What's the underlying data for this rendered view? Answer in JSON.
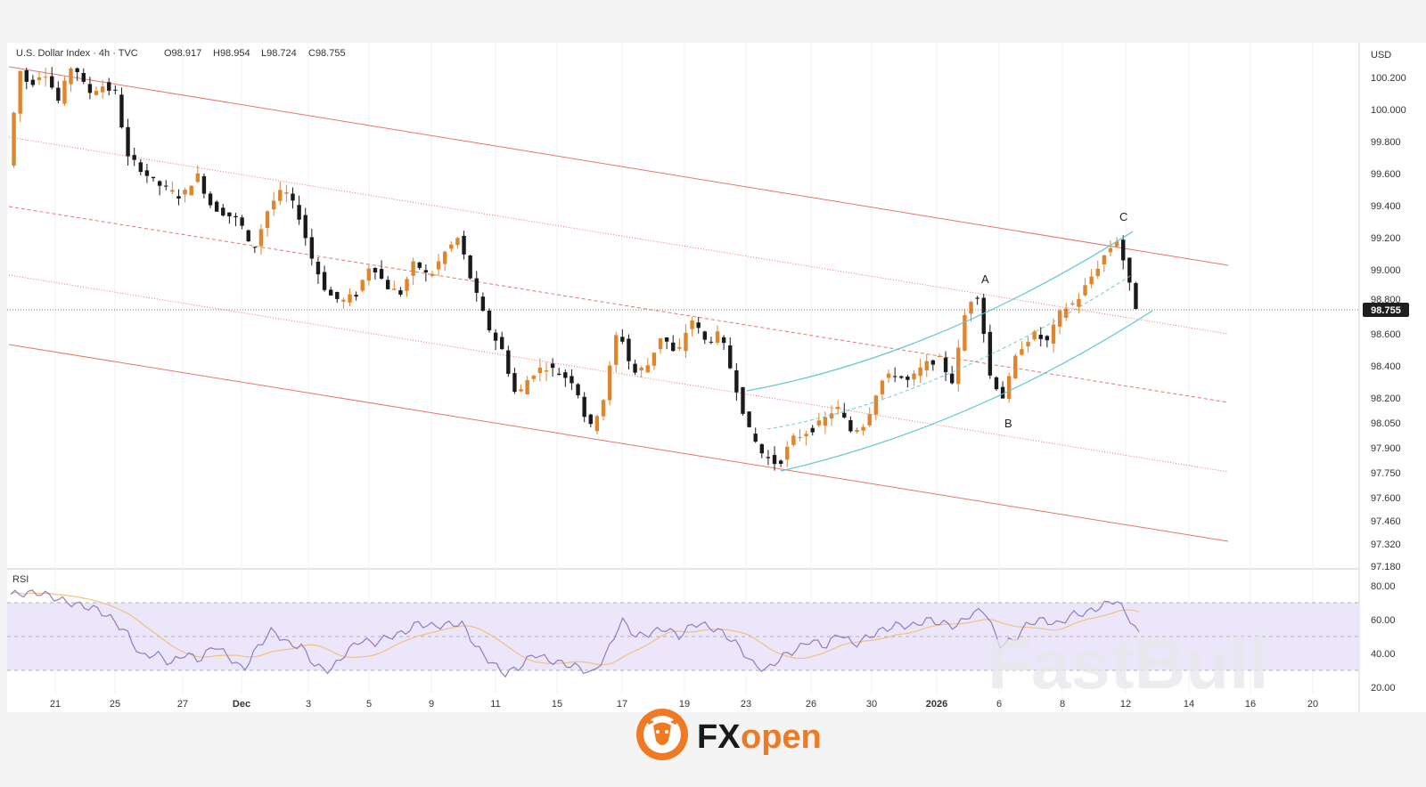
{
  "header": {
    "symbol": "U.S. Dollar Index · 4h · TVC",
    "open": "O98.917",
    "high": "H98.954",
    "low": "L98.724",
    "close": "C98.755"
  },
  "price_axis": {
    "currency": "USD",
    "ticks": [
      "100.200",
      "100.000",
      "99.800",
      "99.600",
      "99.400",
      "99.200",
      "99.000",
      "98.800",
      "98.600",
      "98.400",
      "98.200",
      "98.050",
      "97.900",
      "97.750",
      "97.600",
      "97.460",
      "97.320",
      "97.180"
    ],
    "current_price": "98.755"
  },
  "time_axis": {
    "ticks": [
      "21",
      "25",
      "27",
      "Dec",
      "3",
      "5",
      "9",
      "11",
      "15",
      "17",
      "19",
      "23",
      "26",
      "30",
      "2026",
      "6",
      "8",
      "12",
      "14",
      "16",
      "20"
    ],
    "bold_ticks": [
      "Dec",
      "2026"
    ]
  },
  "rsi": {
    "label": "RSI",
    "ticks": [
      "80.00",
      "60.00",
      "40.00",
      "20.00"
    ],
    "band": [
      30,
      70
    ],
    "mid": 50
  },
  "waves": {
    "a": "A",
    "b": "B",
    "c": "C"
  },
  "colors": {
    "up": "#e0852c",
    "down": "#1a1a1a",
    "channel": "#e4766b",
    "curve": "#5cc7d1",
    "rsi_line": "#8e7cc3",
    "rsi_ma": "#f1c27d",
    "rsi_band": "#ece6fb"
  },
  "logo": {
    "brand_fx": "FX",
    "brand_open": "open"
  },
  "watermark": "FastBull",
  "chart_data": {
    "type": "candlestick",
    "title": "U.S. Dollar Index · 4h · TVC",
    "ylim": [
      97.1,
      100.45
    ],
    "ohlc_last": {
      "open": 98.917,
      "high": 98.954,
      "low": 98.724,
      "close": 98.755
    },
    "price_path": [
      [
        0,
        99.65
      ],
      [
        0.8,
        100.25
      ],
      [
        1.5,
        100.15
      ],
      [
        2.5,
        100.25
      ],
      [
        3.5,
        100.05
      ],
      [
        4.5,
        100.3
      ],
      [
        5.5,
        100.1
      ],
      [
        6.5,
        100.15
      ],
      [
        7.5,
        100.1
      ],
      [
        8.2,
        99.7
      ],
      [
        9,
        99.65
      ],
      [
        10,
        99.55
      ],
      [
        11,
        99.5
      ],
      [
        12,
        99.45
      ],
      [
        13,
        99.6
      ],
      [
        14,
        99.4
      ],
      [
        15,
        99.35
      ],
      [
        16,
        99.3
      ],
      [
        16.8,
        99.1
      ],
      [
        18,
        99.4
      ],
      [
        19,
        99.5
      ],
      [
        20,
        99.35
      ],
      [
        21,
        99.05
      ],
      [
        22,
        98.85
      ],
      [
        23,
        98.8
      ],
      [
        24,
        98.85
      ],
      [
        25,
        99.05
      ],
      [
        26,
        98.9
      ],
      [
        27,
        98.85
      ],
      [
        28,
        99.05
      ],
      [
        29,
        98.95
      ],
      [
        30,
        99.1
      ],
      [
        31,
        99.2
      ],
      [
        32,
        98.9
      ],
      [
        33,
        98.65
      ],
      [
        34,
        98.5
      ],
      [
        35,
        98.2
      ],
      [
        36,
        98.35
      ],
      [
        37,
        98.4
      ],
      [
        38,
        98.35
      ],
      [
        39,
        98.3
      ],
      [
        40,
        98.0
      ],
      [
        41,
        98.2
      ],
      [
        42,
        98.65
      ],
      [
        43,
        98.35
      ],
      [
        44,
        98.4
      ],
      [
        45,
        98.6
      ],
      [
        46,
        98.45
      ],
      [
        47,
        98.7
      ],
      [
        48,
        98.55
      ],
      [
        49,
        98.6
      ],
      [
        50,
        98.3
      ],
      [
        51,
        98.0
      ],
      [
        52,
        97.85
      ],
      [
        53,
        97.8
      ],
      [
        54,
        97.95
      ],
      [
        55,
        98.0
      ],
      [
        56,
        98.05
      ],
      [
        57,
        98.15
      ],
      [
        58,
        98.0
      ],
      [
        59,
        98.05
      ],
      [
        60,
        98.3
      ],
      [
        61,
        98.35
      ],
      [
        62,
        98.3
      ],
      [
        63,
        98.4
      ],
      [
        64,
        98.45
      ],
      [
        65,
        98.3
      ],
      [
        66,
        98.8
      ],
      [
        66.8,
        98.85
      ],
      [
        67.5,
        98.35
      ],
      [
        68.5,
        98.2
      ],
      [
        69.5,
        98.5
      ],
      [
        70.5,
        98.6
      ],
      [
        71.5,
        98.55
      ],
      [
        72.5,
        98.75
      ],
      [
        73.5,
        98.8
      ],
      [
        74.5,
        98.95
      ],
      [
        75.5,
        99.1
      ],
      [
        76.4,
        99.2
      ],
      [
        77,
        98.95
      ],
      [
        77.6,
        98.76
      ]
    ],
    "rsi_path": [
      [
        0,
        75
      ],
      [
        2,
        76
      ],
      [
        4,
        70
      ],
      [
        6,
        66
      ],
      [
        7,
        60
      ],
      [
        8,
        52
      ],
      [
        9,
        38
      ],
      [
        10,
        40
      ],
      [
        11,
        34
      ],
      [
        12,
        40
      ],
      [
        13,
        36
      ],
      [
        14,
        45
      ],
      [
        15,
        38
      ],
      [
        16,
        30
      ],
      [
        17,
        44
      ],
      [
        18,
        54
      ],
      [
        19,
        46
      ],
      [
        20,
        44
      ],
      [
        21,
        32
      ],
      [
        22,
        30
      ],
      [
        23,
        40
      ],
      [
        24,
        48
      ],
      [
        25,
        46
      ],
      [
        26,
        50
      ],
      [
        27,
        52
      ],
      [
        28,
        58
      ],
      [
        29,
        56
      ],
      [
        30,
        57
      ],
      [
        31,
        58
      ],
      [
        32,
        44
      ],
      [
        33,
        35
      ],
      [
        34,
        28
      ],
      [
        35,
        32
      ],
      [
        36,
        40
      ],
      [
        37,
        36
      ],
      [
        38,
        34
      ],
      [
        39,
        32
      ],
      [
        40,
        28
      ],
      [
        41,
        40
      ],
      [
        42,
        60
      ],
      [
        43,
        50
      ],
      [
        44,
        52
      ],
      [
        45,
        55
      ],
      [
        46,
        50
      ],
      [
        47,
        58
      ],
      [
        48,
        56
      ],
      [
        49,
        52
      ],
      [
        50,
        45
      ],
      [
        51,
        34
      ],
      [
        52,
        30
      ],
      [
        53,
        38
      ],
      [
        54,
        42
      ],
      [
        55,
        48
      ],
      [
        56,
        44
      ],
      [
        57,
        52
      ],
      [
        58,
        45
      ],
      [
        59,
        50
      ],
      [
        60,
        54
      ],
      [
        61,
        57
      ],
      [
        62,
        56
      ],
      [
        63,
        60
      ],
      [
        64,
        58
      ],
      [
        65,
        56
      ],
      [
        66,
        63
      ],
      [
        67,
        66
      ],
      [
        68,
        45
      ],
      [
        69,
        48
      ],
      [
        70,
        58
      ],
      [
        71,
        60
      ],
      [
        72,
        57
      ],
      [
        73,
        63
      ],
      [
        74,
        64
      ],
      [
        75,
        68
      ],
      [
        76,
        72
      ],
      [
        77,
        60
      ],
      [
        77.6,
        51
      ]
    ]
  }
}
